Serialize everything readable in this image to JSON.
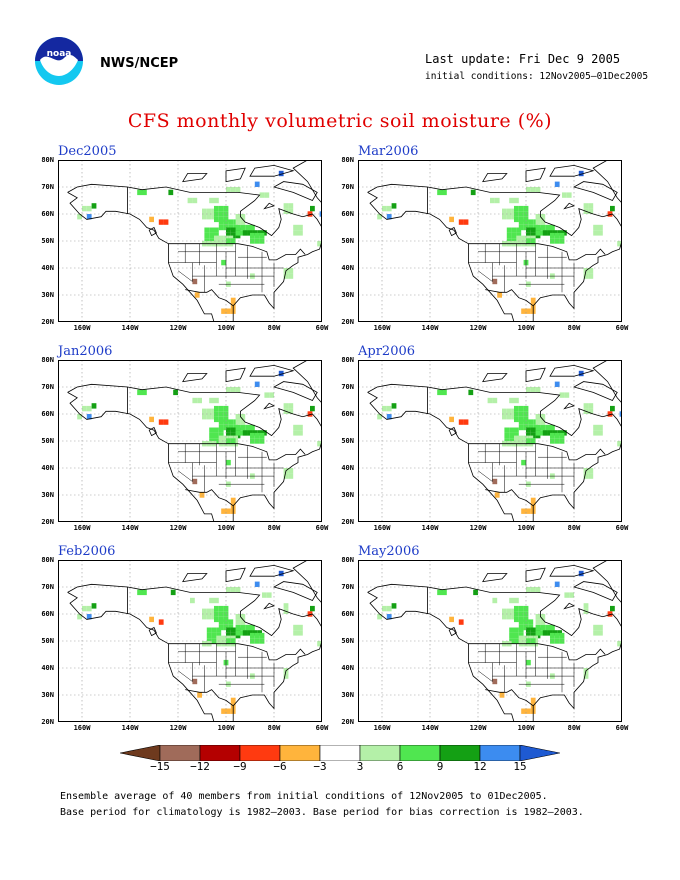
{
  "header": {
    "org": "NWS/NCEP",
    "last_update": "Last update: Fri Dec 9 2005",
    "initial_conditions": "initial conditions: 12Nov2005–01Dec2005",
    "title": "CFS monthly volumetric soil moisture (%)"
  },
  "axes": {
    "y_ticks": [
      "80N",
      "70N",
      "60N",
      "50N",
      "40N",
      "30N",
      "20N"
    ],
    "x_ticks": [
      "160W",
      "140W",
      "120W",
      "100W",
      "80W",
      "60W"
    ]
  },
  "panels": [
    {
      "label": "Dec2005"
    },
    {
      "label": "Mar2006"
    },
    {
      "label": "Jan2006"
    },
    {
      "label": "Apr2006"
    },
    {
      "label": "Feb2006"
    },
    {
      "label": "May2006"
    }
  ],
  "colorbar": {
    "labels": [
      "−15",
      "−12",
      "−9",
      "−6",
      "−3",
      "3",
      "6",
      "9",
      "12",
      "15"
    ],
    "colors": [
      "#6e3a1e",
      "#a06b5a",
      "#b40000",
      "#ff3a10",
      "#ffb43c",
      "#ffffff",
      "#b4f0a8",
      "#50e650",
      "#14a014",
      "#3c8cf0",
      "#1e5ad2"
    ]
  },
  "footer": {
    "line1": "Ensemble average of 40 members from initial conditions of 12Nov2005 to 01Dec2005.",
    "line2": "Base period for climatology is 1982–2003. Base period for bias correction is 1982–2003."
  }
}
